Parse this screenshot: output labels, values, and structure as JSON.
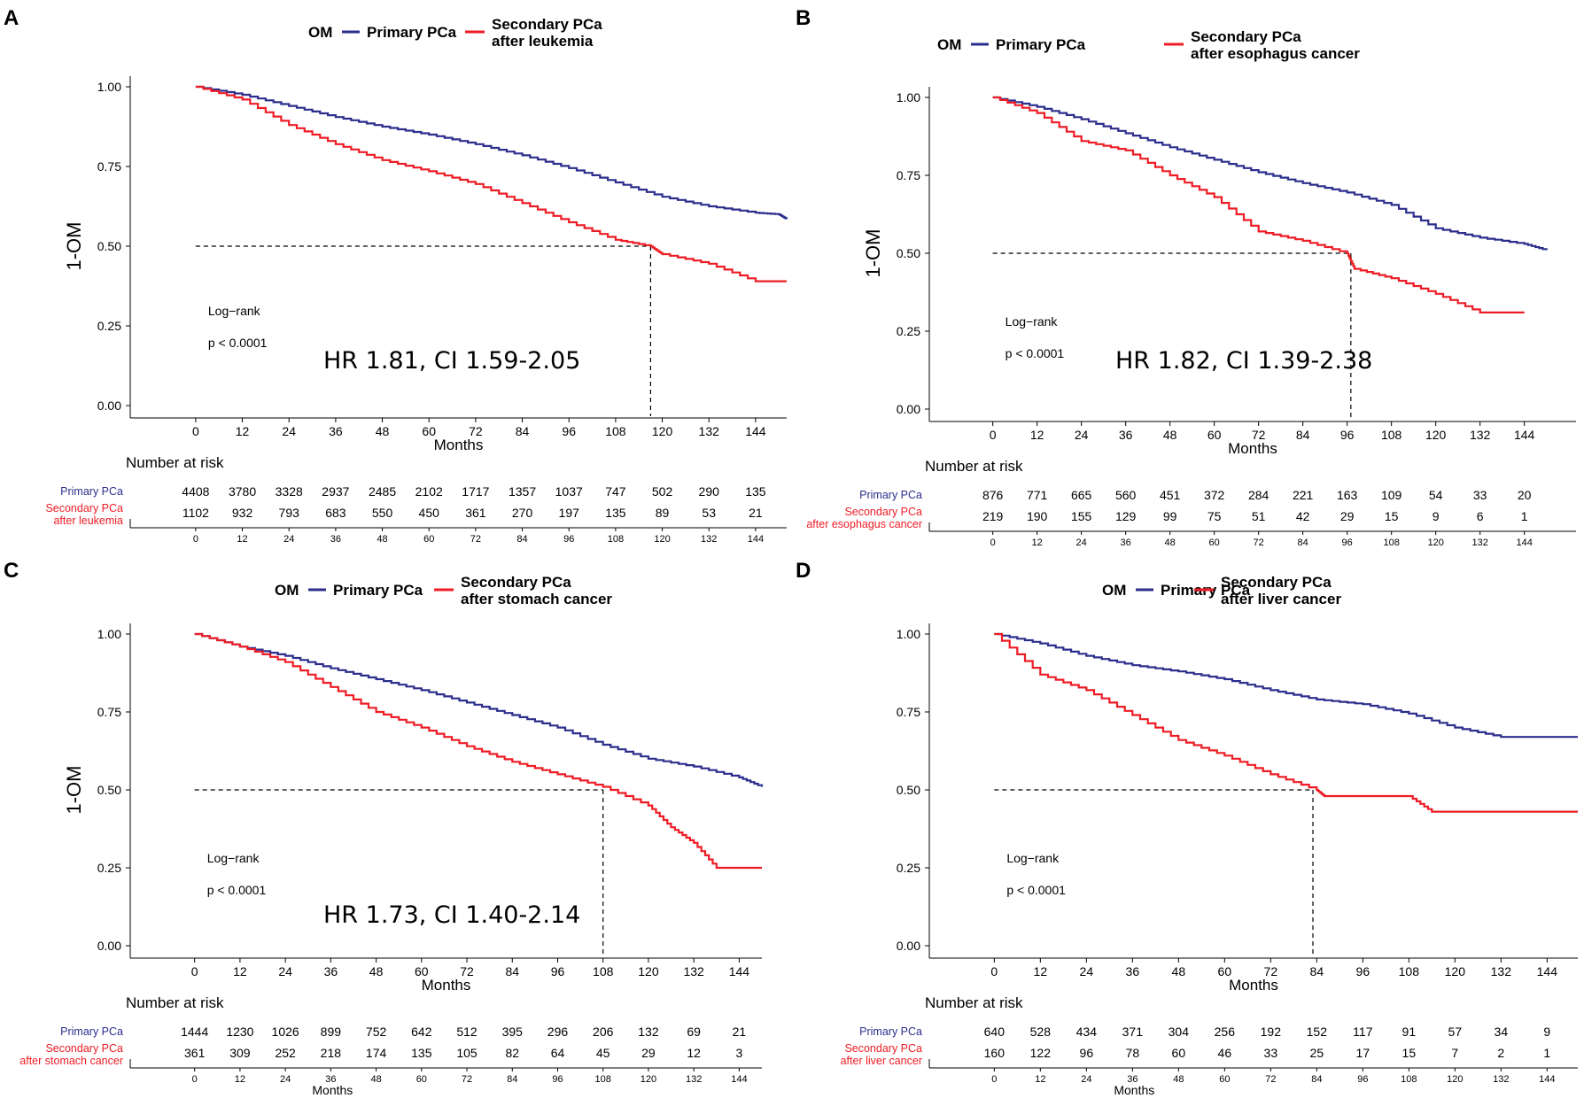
{
  "colors": {
    "primary": "#2b2e8c",
    "secondary": "#ee1c25",
    "axis": "#000000",
    "ref": "#000000"
  },
  "chart_data": [
    {
      "panel": "A",
      "type": "line",
      "chart_kind": "kaplan-meier",
      "legend_title": "OM",
      "legend": [
        "Primary PCa",
        "Secondary PCa after leukemia"
      ],
      "legend_lines": [
        [
          "Primary PCa"
        ],
        [
          "Secondary PCa",
          "after leukemia"
        ]
      ],
      "xlabel": "Months",
      "ylabel": "1-OM",
      "xlim": [
        -10,
        152
      ],
      "ylim": [
        0,
        1
      ],
      "x_ticks": [
        0,
        12,
        24,
        36,
        48,
        60,
        72,
        84,
        96,
        108,
        120,
        132,
        144
      ],
      "y_ticks": [
        "0.00",
        "0.25",
        "0.50",
        "0.75",
        "1.00"
      ],
      "annotation_logrank": "Log−rank",
      "annotation_p": "p < 0.0001",
      "annotation_hr": "HR 1.81, CI 1.59-2.05",
      "median_secondary": 117,
      "series": [
        {
          "name": "Primary PCa",
          "color": "#2b2e8c",
          "x": [
            0,
            12,
            24,
            36,
            48,
            60,
            72,
            84,
            96,
            108,
            120,
            132,
            144,
            150,
            152
          ],
          "y": [
            1.0,
            0.975,
            0.94,
            0.905,
            0.875,
            0.85,
            0.82,
            0.785,
            0.745,
            0.7,
            0.655,
            0.625,
            0.605,
            0.6,
            0.585
          ]
        },
        {
          "name": "Secondary PCa after leukemia",
          "color": "#ee1c25",
          "x": [
            0,
            12,
            24,
            36,
            48,
            60,
            72,
            84,
            96,
            108,
            117,
            120,
            132,
            144,
            152
          ],
          "y": [
            1.0,
            0.96,
            0.88,
            0.82,
            0.77,
            0.735,
            0.695,
            0.635,
            0.575,
            0.52,
            0.5,
            0.475,
            0.445,
            0.39,
            0.39
          ]
        }
      ],
      "risk_table": {
        "title": "Number at risk",
        "rows": [
          {
            "label": [
              "Primary PCa"
            ],
            "color": "#2b2e8c",
            "values": [
              "4408",
              "3780",
              "3328",
              "2937",
              "2485",
              "2102",
              "1717",
              "1357",
              "1037",
              "747",
              "502",
              "290",
              "135"
            ]
          },
          {
            "label": [
              "Secondary PCa",
              "after leukemia"
            ],
            "color": "#ee1c25",
            "values": [
              "1102",
              "932",
              "793",
              "683",
              "550",
              "450",
              "361",
              "270",
              "197",
              "135",
              "89",
              "53",
              "21"
            ]
          }
        ],
        "xlabel": ""
      }
    },
    {
      "panel": "B",
      "type": "line",
      "chart_kind": "kaplan-meier",
      "legend_title": "OM",
      "legend": [
        "Primary PCa",
        "Secondary PCa after esophagus cancer"
      ],
      "legend_lines": [
        [
          "Primary PCa"
        ],
        [
          "Secondary PCa",
          "after esophagus cancer"
        ]
      ],
      "xlabel": "Months",
      "ylabel": "1-OM",
      "xlim": [
        -10,
        158
      ],
      "ylim": [
        0,
        1
      ],
      "x_ticks": [
        0,
        12,
        24,
        36,
        48,
        60,
        72,
        84,
        96,
        108,
        120,
        132,
        144
      ],
      "y_ticks": [
        "0.00",
        "0.25",
        "0.50",
        "0.75",
        "1.00"
      ],
      "annotation_logrank": "Log−rank",
      "annotation_p": "p < 0.0001",
      "annotation_hr": "HR 1.82, CI 1.39-2.38",
      "median_secondary": 97,
      "series": [
        {
          "name": "Primary PCa",
          "color": "#2b2e8c",
          "x": [
            0,
            12,
            24,
            36,
            48,
            60,
            72,
            84,
            96,
            108,
            120,
            132,
            144,
            150
          ],
          "y": [
            1.0,
            0.97,
            0.93,
            0.885,
            0.84,
            0.8,
            0.76,
            0.725,
            0.695,
            0.655,
            0.58,
            0.55,
            0.53,
            0.51
          ]
        },
        {
          "name": "Secondary PCa after esophagus cancer",
          "color": "#ee1c25",
          "x": [
            0,
            12,
            24,
            36,
            48,
            60,
            72,
            84,
            96,
            98,
            108,
            120,
            132,
            144
          ],
          "y": [
            1.0,
            0.95,
            0.86,
            0.83,
            0.75,
            0.68,
            0.57,
            0.54,
            0.5,
            0.45,
            0.42,
            0.37,
            0.31,
            0.31
          ]
        }
      ],
      "risk_table": {
        "title": "Number at risk",
        "rows": [
          {
            "label": [
              "Primary PCa"
            ],
            "color": "#2b2e8c",
            "values": [
              "876",
              "771",
              "665",
              "560",
              "451",
              "372",
              "284",
              "221",
              "163",
              "109",
              "54",
              "33",
              "20"
            ]
          },
          {
            "label": [
              "Secondary PCa",
              "after esophagus cancer"
            ],
            "color": "#ee1c25",
            "values": [
              "219",
              "190",
              "155",
              "129",
              "99",
              "75",
              "51",
              "42",
              "29",
              "15",
              "9",
              "6",
              "1"
            ]
          }
        ],
        "xlabel": ""
      }
    },
    {
      "panel": "C",
      "type": "line",
      "chart_kind": "kaplan-meier",
      "legend_title": "OM",
      "legend": [
        "Primary PCa",
        "Secondary PCa after stomach cancer"
      ],
      "legend_lines": [
        [
          "Primary PCa"
        ],
        [
          "Secondary PCa",
          "after stomach cancer"
        ]
      ],
      "xlabel": "Months",
      "ylabel": "1-OM",
      "xlim": [
        -10,
        150
      ],
      "ylim": [
        0,
        1
      ],
      "x_ticks": [
        0,
        12,
        24,
        36,
        48,
        60,
        72,
        84,
        96,
        108,
        120,
        132,
        144
      ],
      "y_ticks": [
        "0.00",
        "0.25",
        "0.50",
        "0.75",
        "1.00"
      ],
      "annotation_logrank": "Log−rank",
      "annotation_p": "p < 0.0001",
      "annotation_hr": "HR 1.73, CI 1.40-2.14",
      "median_secondary": 108,
      "series": [
        {
          "name": "Primary PCa",
          "color": "#2b2e8c",
          "x": [
            0,
            12,
            24,
            36,
            48,
            60,
            72,
            84,
            96,
            108,
            120,
            132,
            144,
            150
          ],
          "y": [
            1.0,
            0.96,
            0.93,
            0.89,
            0.855,
            0.82,
            0.78,
            0.74,
            0.7,
            0.645,
            0.6,
            0.575,
            0.54,
            0.51
          ]
        },
        {
          "name": "Secondary PCa after stomach cancer",
          "color": "#ee1c25",
          "x": [
            0,
            12,
            24,
            36,
            48,
            60,
            72,
            84,
            96,
            108,
            120,
            126,
            132,
            138,
            144,
            150
          ],
          "y": [
            1.0,
            0.96,
            0.91,
            0.83,
            0.75,
            0.7,
            0.64,
            0.59,
            0.55,
            0.51,
            0.45,
            0.38,
            0.33,
            0.25,
            0.25,
            0.25
          ]
        }
      ],
      "risk_table": {
        "title": "Number at risk",
        "rows": [
          {
            "label": [
              "Primary PCa"
            ],
            "color": "#2b2e8c",
            "values": [
              "1444",
              "1230",
              "1026",
              "899",
              "752",
              "642",
              "512",
              "395",
              "296",
              "206",
              "132",
              "69",
              "21"
            ]
          },
          {
            "label": [
              "Secondary PCa",
              "after stomach cancer"
            ],
            "color": "#ee1c25",
            "values": [
              "361",
              "309",
              "252",
              "218",
              "174",
              "135",
              "105",
              "82",
              "64",
              "45",
              "29",
              "12",
              "3"
            ]
          }
        ],
        "xlabel": "Months"
      }
    },
    {
      "panel": "D",
      "type": "line",
      "chart_kind": "kaplan-meier",
      "legend_title": "OM",
      "legend": [
        "Primary PCa",
        "Secondary PCa after liver cancer"
      ],
      "legend_lines": [
        [
          "Primary PCa"
        ],
        [
          "Secondary PCa",
          "after liver cancer"
        ]
      ],
      "xlabel": "Months",
      "ylabel": "",
      "xlim": [
        -10,
        152
      ],
      "ylim": [
        0,
        1
      ],
      "x_ticks": [
        0,
        12,
        24,
        36,
        48,
        60,
        72,
        84,
        96,
        108,
        120,
        132,
        144
      ],
      "y_ticks": [
        "0.00",
        "0.25",
        "0.50",
        "0.75",
        "1.00"
      ],
      "annotation_logrank": "Log−rank",
      "annotation_p": "p < 0.0001",
      "annotation_hr": "",
      "median_secondary": 83,
      "series": [
        {
          "name": "Primary PCa",
          "color": "#2b2e8c",
          "x": [
            0,
            12,
            24,
            36,
            48,
            60,
            72,
            84,
            96,
            108,
            120,
            132,
            144,
            152
          ],
          "y": [
            1.0,
            0.97,
            0.93,
            0.9,
            0.88,
            0.855,
            0.82,
            0.79,
            0.775,
            0.745,
            0.7,
            0.67,
            0.67,
            0.67
          ]
        },
        {
          "name": "Secondary PCa after liver cancer",
          "color": "#ee1c25",
          "x": [
            0,
            12,
            24,
            36,
            48,
            60,
            72,
            84,
            86,
            96,
            108,
            114,
            120,
            132,
            144,
            152
          ],
          "y": [
            1.0,
            0.87,
            0.82,
            0.74,
            0.66,
            0.61,
            0.55,
            0.5,
            0.48,
            0.48,
            0.48,
            0.43,
            0.43,
            0.43,
            0.43,
            0.43
          ]
        }
      ],
      "risk_table": {
        "title": "Number at risk",
        "rows": [
          {
            "label": [
              "Primary PCa"
            ],
            "color": "#2b2e8c",
            "values": [
              "640",
              "528",
              "434",
              "371",
              "304",
              "256",
              "192",
              "152",
              "117",
              "91",
              "57",
              "34",
              "9"
            ]
          },
          {
            "label": [
              "Secondary PCa",
              "after liver cancer"
            ],
            "color": "#ee1c25",
            "values": [
              "160",
              "122",
              "96",
              "78",
              "60",
              "46",
              "33",
              "25",
              "17",
              "15",
              "7",
              "2",
              "1"
            ]
          }
        ],
        "xlabel": "Months"
      }
    }
  ]
}
